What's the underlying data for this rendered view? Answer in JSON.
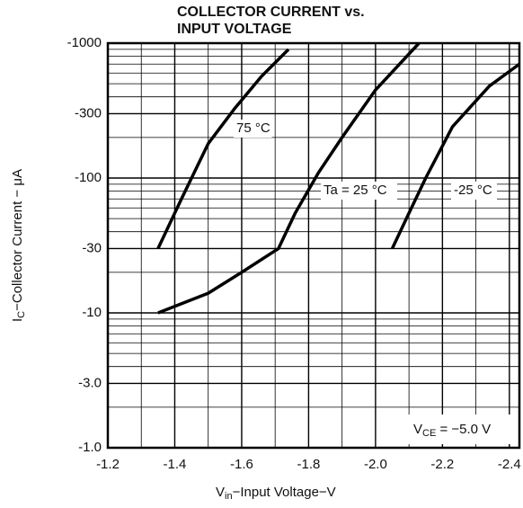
{
  "chart_data": {
    "type": "line",
    "title": [
      "COLLECTOR CURRENT vs.",
      "INPUT VOLTAGE"
    ],
    "x_label": {
      "main": "V",
      "sub": "in",
      "rest": "−Input Voltage−V"
    },
    "y_label": {
      "main": "I",
      "sub": "C",
      "rest": "−Collector Current − μA"
    },
    "annotation": {
      "main": "V",
      "sub": "CE",
      "rest": " = −5.0 V"
    },
    "log_y": true,
    "grid": true,
    "color": "#000000",
    "xlim": [
      -1.2,
      -2.43
    ],
    "xticks": [
      -1.2,
      -1.4,
      -1.6,
      -1.8,
      {
        "value": -2.0,
        "label": "-2.0"
      },
      -2.2,
      -2.4
    ],
    "xminor": [
      -1.3,
      -1.5,
      -1.7,
      -1.9,
      -2.1,
      -2.3
    ],
    "ylim": [
      -1,
      -1000
    ],
    "yticks": [
      {
        "value": -1,
        "label": "-1.0"
      },
      {
        "value": -3,
        "label": "-3.0"
      },
      -10,
      -30,
      -100,
      -300,
      -1000
    ],
    "yminor": [
      -2,
      -4,
      -5,
      -6,
      -7,
      -8,
      -9,
      -20,
      -40,
      -50,
      -60,
      -70,
      -80,
      -90,
      -200,
      -400,
      -500,
      -600,
      -700,
      -800,
      -900
    ],
    "series": [
      {
        "name": "75 °C",
        "x": [
          -1.35,
          -1.42,
          -1.5,
          -1.58,
          -1.66,
          -1.74
        ],
        "values": [
          -30,
          -70,
          -180,
          -330,
          -570,
          -900
        ]
      },
      {
        "name": "Ta = 25 °C",
        "x": [
          -1.35,
          -1.5,
          -1.6,
          -1.71,
          -1.76,
          -1.83,
          -1.9,
          -2.0,
          -2.13
        ],
        "values": [
          -10,
          -14,
          -20,
          -30,
          -55,
          -110,
          -200,
          -450,
          -1000
        ]
      },
      {
        "name": "-25 °C",
        "x": [
          -2.05,
          -2.1,
          -2.15,
          -2.23,
          -2.34,
          -2.43
        ],
        "values": [
          -30,
          -55,
          -100,
          -240,
          -480,
          -700
        ]
      }
    ]
  }
}
